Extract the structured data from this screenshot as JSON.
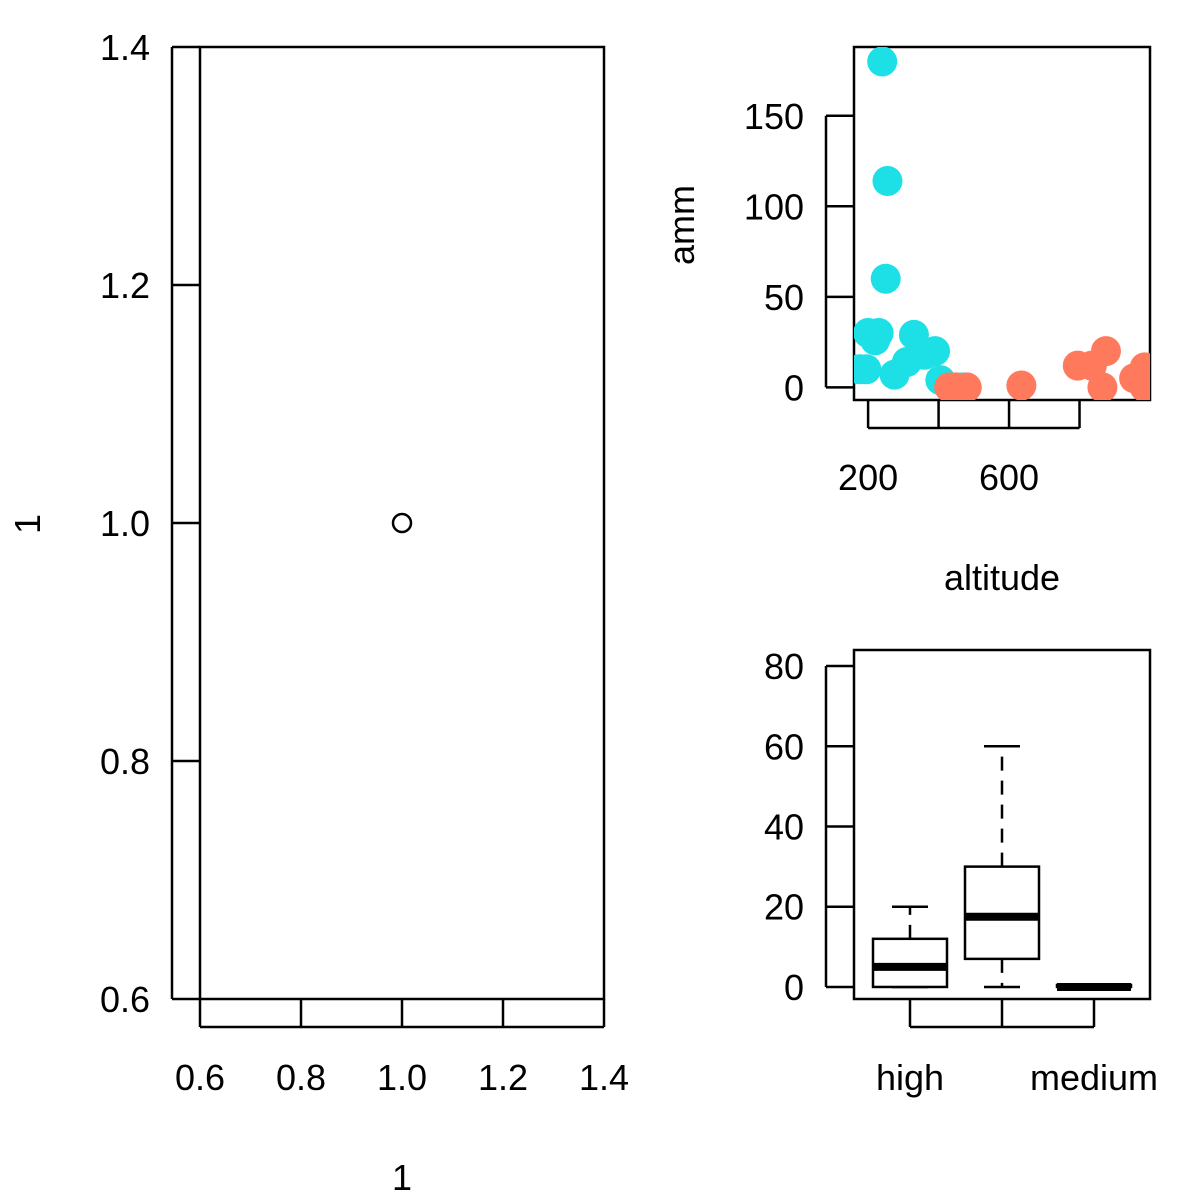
{
  "colors": {
    "axis": "#000000",
    "cyan": "#1de0e6",
    "salmon": "#ff7a5c",
    "median": "#000000"
  },
  "chart_data": [
    {
      "id": "panel-left",
      "type": "scatter",
      "title": "",
      "xlabel": "1",
      "ylabel": "1",
      "xlim": [
        0.6,
        1.4
      ],
      "ylim": [
        0.6,
        1.4
      ],
      "xticks": [
        "0.6",
        "0.8",
        "1.0",
        "1.2",
        "1.4"
      ],
      "yticks": [
        "0.6",
        "0.8",
        "1.0",
        "1.2",
        "1.4"
      ],
      "grid": false,
      "points": [
        {
          "x": 1.0,
          "y": 1.0
        }
      ],
      "marker": "open-circle"
    },
    {
      "id": "panel-top-right",
      "type": "scatter",
      "title": "",
      "xlabel": "altitude",
      "ylabel": "amm",
      "xlim": [
        160,
        1000
      ],
      "ylim": [
        -7,
        188
      ],
      "xticks": [
        "200",
        "600"
      ],
      "yticks": [
        "0",
        "50",
        "100",
        "150"
      ],
      "grid": false,
      "series": [
        {
          "color": "cyan",
          "points": [
            {
              "x": 240,
              "y": 180
            },
            {
              "x": 255,
              "y": 114
            },
            {
              "x": 250,
              "y": 60
            },
            {
              "x": 200,
              "y": 30
            },
            {
              "x": 230,
              "y": 30
            },
            {
              "x": 220,
              "y": 26
            },
            {
              "x": 330,
              "y": 29
            },
            {
              "x": 310,
              "y": 14
            },
            {
              "x": 360,
              "y": 18
            },
            {
              "x": 390,
              "y": 20
            },
            {
              "x": 175,
              "y": 10
            },
            {
              "x": 195,
              "y": 10
            },
            {
              "x": 275,
              "y": 7
            },
            {
              "x": 405,
              "y": 4
            },
            {
              "x": 470,
              "y": 0
            }
          ]
        },
        {
          "color": "salmon",
          "points": [
            {
              "x": 430,
              "y": 0
            },
            {
              "x": 450,
              "y": 0
            },
            {
              "x": 480,
              "y": 0
            },
            {
              "x": 635,
              "y": 1
            },
            {
              "x": 795,
              "y": 12
            },
            {
              "x": 835,
              "y": 12
            },
            {
              "x": 875,
              "y": 20
            },
            {
              "x": 865,
              "y": 0
            },
            {
              "x": 955,
              "y": 5
            },
            {
              "x": 985,
              "y": 11
            },
            {
              "x": 985,
              "y": 0
            }
          ]
        }
      ]
    },
    {
      "id": "panel-bottom-right",
      "type": "boxplot",
      "title": "",
      "xlabel": "",
      "ylabel": "",
      "ylim": [
        -3,
        84
      ],
      "yticks": [
        "0",
        "20",
        "40",
        "60",
        "80"
      ],
      "categories": [
        "high",
        "",
        "medium"
      ],
      "grid": false,
      "boxes": [
        {
          "min": 0,
          "q1": 0,
          "median": 5,
          "q3": 12,
          "max": 20
        },
        {
          "min": 0,
          "q1": 7,
          "median": 17.5,
          "q3": 30,
          "max": 60
        },
        {
          "min": 0,
          "q1": 0,
          "median": 0,
          "q3": 0.5,
          "max": 0.5
        }
      ]
    }
  ]
}
